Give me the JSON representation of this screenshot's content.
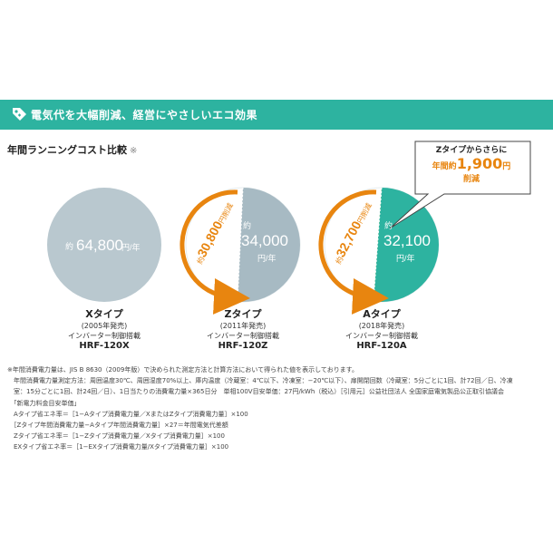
{
  "header": {
    "banner_text": "電気代を大幅削減、経営にやさしいエコ効果",
    "section_title": "年間ランニングコスト比較",
    "section_mark": "※"
  },
  "colors": {
    "banner": "#2db3a0",
    "x_circle": "#b9c8cf",
    "z_circle": "#a7bac3",
    "a_circle": "#2db3a0",
    "arrow": "#e8850f",
    "savings_sliver": "#e9d04a"
  },
  "products": [
    {
      "prefix": "約",
      "value": "64,800",
      "unit": "円/年",
      "name": "Xタイプ",
      "year": "(2005年発売)",
      "inverter": "インバーター制御搭載",
      "model": "HRF-120X"
    },
    {
      "prefix": "約",
      "value": "34,000",
      "unit": "円/年",
      "name": "Zタイプ",
      "year": "(2011年発売)",
      "inverter": "インバーター制御搭載",
      "model": "HRF-120Z",
      "reduction_prefix": "約",
      "reduction_value": "30,800",
      "reduction_unit": "円削減"
    },
    {
      "prefix": "約",
      "value": "32,100",
      "unit": "円/年",
      "name": "Aタイプ",
      "year": "(2018年発売)",
      "inverter": "インバーター制御搭載",
      "model": "HRF-120A",
      "reduction_prefix": "約",
      "reduction_value": "32,700",
      "reduction_unit": "円削減"
    }
  ],
  "callout": {
    "line1": "Zタイプからさらに",
    "line2_prefix": "年間約",
    "line2_value": "1,900",
    "line2_unit": "円",
    "line3": "削減"
  },
  "notes": [
    "※年間消費電力量は、JIS B 8630（2009年版）で決められた測定方法と計算方法において得られた値を表示しております。",
    "　年間消費電力量測定方法：周囲温度30℃、周囲湿度70%以上、庫内温度（冷蔵室：4℃以下、冷凍室：−20℃以下）、扉開閉回数（冷蔵室：5分ごとに1回、計72回／日、冷凍",
    "　室：15分ごとに1回、計24回／日）、1日当たりの消費電力量×365日分　単相100V目安単価：27円/kWh（税込）［引用元］公益社団法人 全国家庭電気製品公正取引協議会",
    "　「新電力料金目安単価」",
    "　Aタイプ省エネ率＝［1−Aタイプ消費電力量／XまたはZタイプ消費電力量］×100",
    "　［Zタイプ年間消費電力量−Aタイプ年間消費電力量］×27＝年間電気代差額",
    "　Zタイプ省エネ率＝［1−Zタイプ消費電力量／Xタイプ消費電力量］×100",
    "　EXタイプ省エネ率＝［1−EXタイプ消費電力量/Xタイプ消費電力量］×100"
  ]
}
